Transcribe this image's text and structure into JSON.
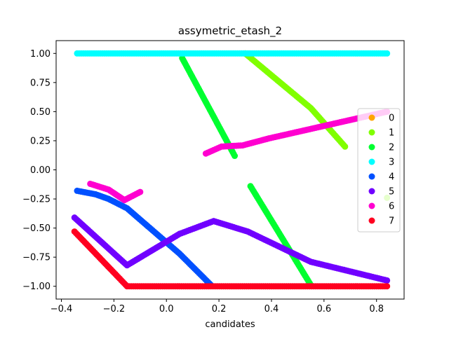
{
  "chart_data": {
    "type": "scatter",
    "title": "assymetric_etash_2",
    "xlabel": "candidates",
    "ylabel": "",
    "xlim": [
      -0.42,
      0.905
    ],
    "ylim": [
      -1.11,
      1.11
    ],
    "grid": false,
    "x_ticks": [
      -0.4,
      -0.2,
      0.0,
      0.2,
      0.4,
      0.6,
      0.8
    ],
    "x_tick_labels": [
      "−0.4",
      "−0.2",
      "0.0",
      "0.2",
      "0.4",
      "0.6",
      "0.8"
    ],
    "y_ticks": [
      1.0,
      0.75,
      0.5,
      0.25,
      0.0,
      -0.25,
      -0.5,
      -0.75,
      -1.0
    ],
    "y_tick_labels": [
      "1.00",
      "0.75",
      "0.50",
      "0.25",
      "0.00",
      "−0.25",
      "−0.50",
      "−0.75",
      "−1.00"
    ],
    "legend_position": "center-right",
    "series": [
      {
        "name": "0",
        "color": "#ffa500",
        "segments": []
      },
      {
        "name": "1",
        "color": "#80ff00",
        "segments": [
          {
            "points": [
              [
                0.3,
                1.0
              ],
              [
                0.55,
                0.53
              ],
              [
                0.68,
                0.2
              ]
            ]
          },
          {
            "points": [
              [
                0.84,
                -0.24
              ],
              [
                0.84,
                -0.24
              ]
            ],
            "n": 1
          }
        ]
      },
      {
        "name": "2",
        "color": "#00ff30",
        "segments": [
          {
            "points": [
              [
                0.06,
                0.96
              ],
              [
                0.26,
                0.12
              ]
            ]
          },
          {
            "points": [
              [
                0.32,
                -0.14
              ],
              [
                0.55,
                -0.99
              ]
            ]
          }
        ]
      },
      {
        "name": "3",
        "color": "#00ffff",
        "segments": [
          {
            "points": [
              [
                -0.34,
                1.0
              ],
              [
                0.84,
                1.0
              ]
            ],
            "n": 140
          }
        ]
      },
      {
        "name": "4",
        "color": "#0050ff",
        "segments": [
          {
            "points": [
              [
                -0.34,
                -0.18
              ],
              [
                -0.27,
                -0.21
              ],
              [
                -0.22,
                -0.25
              ],
              [
                -0.15,
                -0.33
              ],
              [
                0.05,
                -0.72
              ],
              [
                0.17,
                -0.99
              ]
            ]
          }
        ]
      },
      {
        "name": "5",
        "color": "#7000ff",
        "segments": [
          {
            "points": [
              [
                -0.35,
                -0.41
              ],
              [
                -0.15,
                -0.82
              ],
              [
                0.05,
                -0.55
              ],
              [
                0.18,
                -0.44
              ],
              [
                0.31,
                -0.53
              ],
              [
                0.55,
                -0.79
              ],
              [
                0.84,
                -0.95
              ]
            ]
          }
        ]
      },
      {
        "name": "6",
        "color": "#ff00d0",
        "segments": [
          {
            "points": [
              [
                -0.29,
                -0.12
              ],
              [
                -0.22,
                -0.17
              ],
              [
                -0.16,
                -0.26
              ],
              [
                -0.1,
                -0.19
              ]
            ]
          },
          {
            "points": [
              [
                0.15,
                0.14
              ],
              [
                0.21,
                0.2
              ],
              [
                0.29,
                0.21
              ],
              [
                0.39,
                0.27
              ],
              [
                0.84,
                0.5
              ]
            ]
          }
        ]
      },
      {
        "name": "7",
        "color": "#ff0020",
        "segments": [
          {
            "points": [
              [
                -0.35,
                -0.53
              ],
              [
                -0.15,
                -1.0
              ],
              [
                0.84,
                -1.0
              ]
            ]
          }
        ]
      }
    ]
  }
}
